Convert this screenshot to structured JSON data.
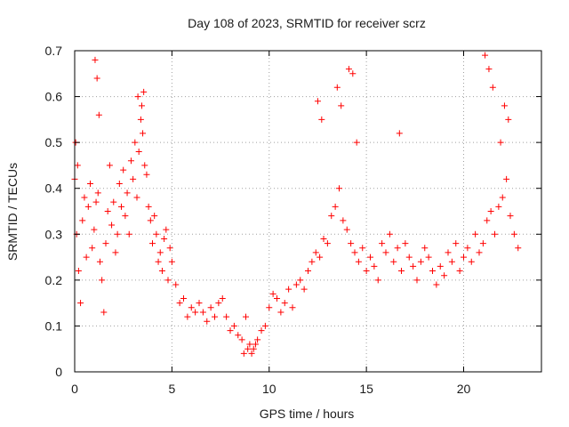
{
  "chart_data": {
    "type": "scatter",
    "title": "Day 108 of 2023, SRMTID for receiver scrz",
    "xlabel": "GPS time / hours",
    "ylabel": "SRMTID / TECUs",
    "xlim": [
      0,
      24.0
    ],
    "ylim": [
      0,
      0.7
    ],
    "x_ticks": [
      0,
      5,
      10,
      15,
      20
    ],
    "x_tick_labels": [
      "0",
      "5",
      "10",
      "15",
      "20"
    ],
    "y_ticks": [
      0,
      0.1,
      0.2,
      0.3,
      0.4,
      0.5,
      0.6,
      0.7
    ],
    "y_tick_labels": [
      "0",
      "0.1",
      "0.2",
      "0.3",
      "0.4",
      "0.5",
      "0.6",
      "0.7"
    ],
    "grid": true,
    "marker": "plus",
    "series": [
      {
        "name": "SRMTID",
        "color": "#ff0000",
        "x": [
          0.0,
          0.1,
          0.2,
          0.3,
          0.4,
          0.5,
          0.6,
          0.7,
          0.8,
          0.9,
          1.0,
          1.1,
          1.2,
          1.3,
          1.4,
          1.5,
          1.6,
          1.7,
          1.8,
          1.9,
          2.0,
          2.1,
          2.2,
          2.3,
          2.4,
          2.5,
          2.6,
          2.7,
          2.8,
          2.9,
          3.0,
          3.1,
          3.2,
          3.3,
          3.4,
          3.5,
          3.6,
          3.7,
          3.8,
          3.9,
          4.0,
          4.1,
          4.2,
          4.3,
          4.4,
          4.5,
          4.6,
          4.7,
          4.8,
          4.9,
          5.0,
          5.2,
          5.4,
          5.6,
          5.8,
          6.0,
          6.2,
          6.4,
          6.6,
          6.8,
          7.0,
          7.2,
          7.4,
          7.6,
          7.8,
          8.0,
          8.2,
          8.4,
          8.6,
          8.8,
          9.0,
          9.2,
          9.4,
          9.6,
          9.8,
          10.0,
          10.2,
          10.4,
          10.6,
          10.8,
          11.0,
          11.2,
          11.4,
          11.6,
          11.8,
          12.0,
          12.2,
          12.4,
          12.6,
          12.8,
          13.0,
          13.2,
          13.4,
          13.6,
          13.8,
          14.0,
          14.2,
          14.4,
          14.6,
          14.8,
          15.0,
          15.2,
          15.4,
          15.6,
          15.8,
          16.0,
          16.2,
          16.4,
          16.6,
          16.8,
          17.0,
          17.2,
          17.4,
          17.6,
          17.8,
          18.0,
          18.2,
          18.4,
          18.6,
          18.8,
          19.0,
          19.2,
          19.4,
          19.6,
          19.8,
          20.0,
          20.2,
          20.4,
          20.6,
          20.8,
          21.0,
          21.2,
          21.4,
          21.6,
          21.8,
          22.0,
          22.2,
          22.4,
          22.6,
          22.8,
          0.05,
          0.15,
          1.05,
          1.15,
          1.25,
          3.25,
          3.45,
          3.55,
          8.7,
          8.9,
          9.1,
          9.3,
          12.5,
          12.7,
          13.5,
          13.7,
          14.1,
          14.3,
          14.5,
          16.7,
          21.1,
          21.3,
          21.5,
          22.1,
          22.3,
          21.9
        ],
        "y": [
          0.42,
          0.3,
          0.22,
          0.15,
          0.33,
          0.38,
          0.25,
          0.36,
          0.41,
          0.27,
          0.31,
          0.37,
          0.39,
          0.24,
          0.2,
          0.13,
          0.28,
          0.35,
          0.45,
          0.32,
          0.37,
          0.26,
          0.3,
          0.41,
          0.36,
          0.44,
          0.34,
          0.39,
          0.3,
          0.46,
          0.42,
          0.5,
          0.38,
          0.48,
          0.55,
          0.52,
          0.45,
          0.43,
          0.36,
          0.33,
          0.28,
          0.34,
          0.3,
          0.24,
          0.26,
          0.22,
          0.29,
          0.31,
          0.2,
          0.27,
          0.24,
          0.19,
          0.15,
          0.16,
          0.12,
          0.14,
          0.13,
          0.15,
          0.13,
          0.11,
          0.14,
          0.12,
          0.15,
          0.16,
          0.12,
          0.09,
          0.1,
          0.08,
          0.07,
          0.12,
          0.06,
          0.05,
          0.07,
          0.09,
          0.1,
          0.14,
          0.17,
          0.16,
          0.13,
          0.15,
          0.18,
          0.14,
          0.19,
          0.2,
          0.18,
          0.22,
          0.24,
          0.26,
          0.25,
          0.29,
          0.28,
          0.34,
          0.36,
          0.4,
          0.33,
          0.31,
          0.28,
          0.26,
          0.24,
          0.27,
          0.22,
          0.25,
          0.23,
          0.2,
          0.28,
          0.26,
          0.3,
          0.24,
          0.27,
          0.22,
          0.28,
          0.25,
          0.23,
          0.2,
          0.24,
          0.27,
          0.25,
          0.22,
          0.19,
          0.23,
          0.21,
          0.26,
          0.24,
          0.28,
          0.22,
          0.25,
          0.27,
          0.24,
          0.3,
          0.26,
          0.28,
          0.33,
          0.35,
          0.3,
          0.36,
          0.38,
          0.42,
          0.34,
          0.3,
          0.27,
          0.5,
          0.45,
          0.68,
          0.64,
          0.56,
          0.6,
          0.58,
          0.61,
          0.04,
          0.05,
          0.04,
          0.06,
          0.59,
          0.55,
          0.62,
          0.58,
          0.66,
          0.65,
          0.5,
          0.52,
          0.69,
          0.66,
          0.62,
          0.58,
          0.55,
          0.5
        ]
      }
    ]
  }
}
